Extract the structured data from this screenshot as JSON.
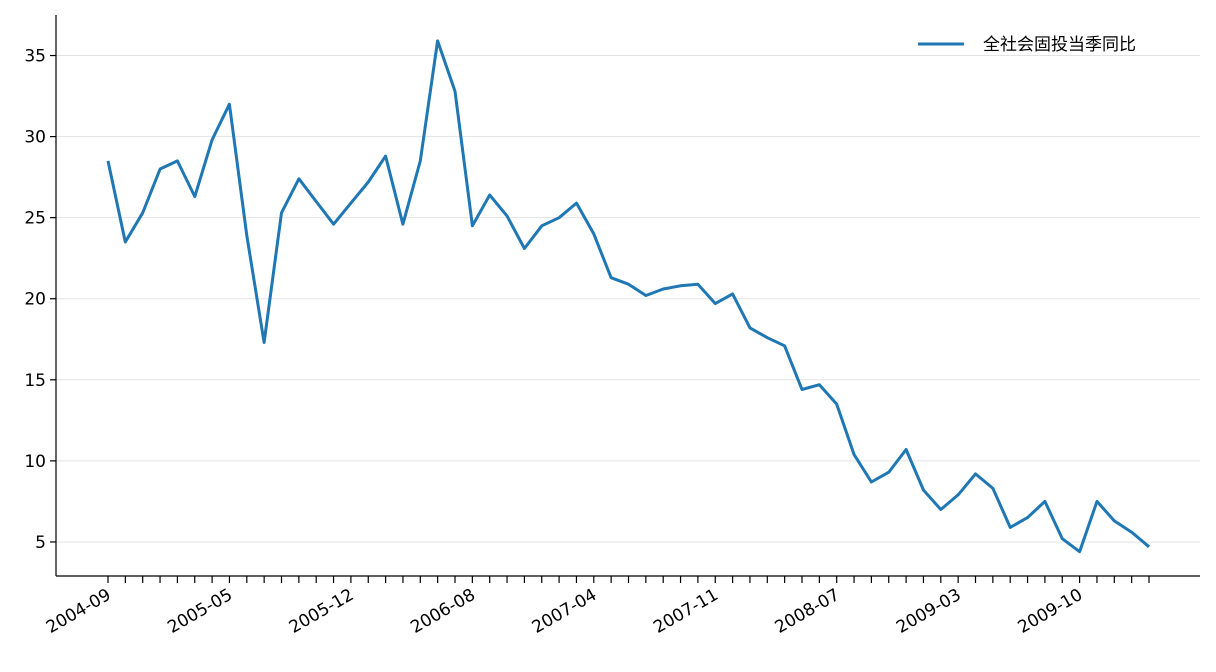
{
  "chart_data": {
    "type": "line",
    "categories": [
      "2004-09",
      null,
      null,
      null,
      null,
      null,
      null,
      "2005-05",
      null,
      null,
      null,
      null,
      null,
      null,
      "2005-12",
      null,
      null,
      null,
      null,
      null,
      null,
      "2006-08",
      null,
      null,
      null,
      null,
      null,
      null,
      "2007-04",
      null,
      null,
      null,
      null,
      null,
      null,
      "2007-11",
      null,
      null,
      null,
      null,
      null,
      null,
      "2008-07",
      null,
      null,
      null,
      null,
      null,
      null,
      "2009-03",
      null,
      null,
      null,
      null,
      null,
      null,
      "2009-10",
      null,
      null,
      null,
      null
    ],
    "series": [
      {
        "name": "全社会固投当季同比",
        "color": "#1f77b4",
        "values": [
          28.5,
          23.5,
          25.3,
          28.0,
          28.5,
          26.3,
          29.8,
          32.0,
          23.9,
          17.3,
          25.3,
          27.4,
          26.0,
          24.6,
          25.9,
          27.2,
          28.8,
          24.6,
          28.5,
          35.9,
          32.8,
          24.5,
          26.4,
          25.1,
          23.1,
          24.5,
          25.0,
          25.9,
          24.0,
          21.3,
          20.9,
          20.2,
          20.6,
          20.8,
          20.9,
          19.7,
          20.3,
          18.2,
          17.6,
          17.1,
          14.4,
          14.7,
          13.5,
          10.4,
          8.7,
          9.3,
          10.7,
          8.2,
          7.0,
          7.9,
          9.2,
          8.3,
          5.9,
          6.5,
          7.5,
          5.2,
          4.4,
          7.5,
          6.3,
          5.6,
          4.7
        ]
      }
    ],
    "ylim": [
      2.9,
      37.5
    ],
    "yticks": [
      5,
      10,
      15,
      20,
      25,
      30,
      35
    ],
    "grid": true,
    "legend": "upper right"
  }
}
